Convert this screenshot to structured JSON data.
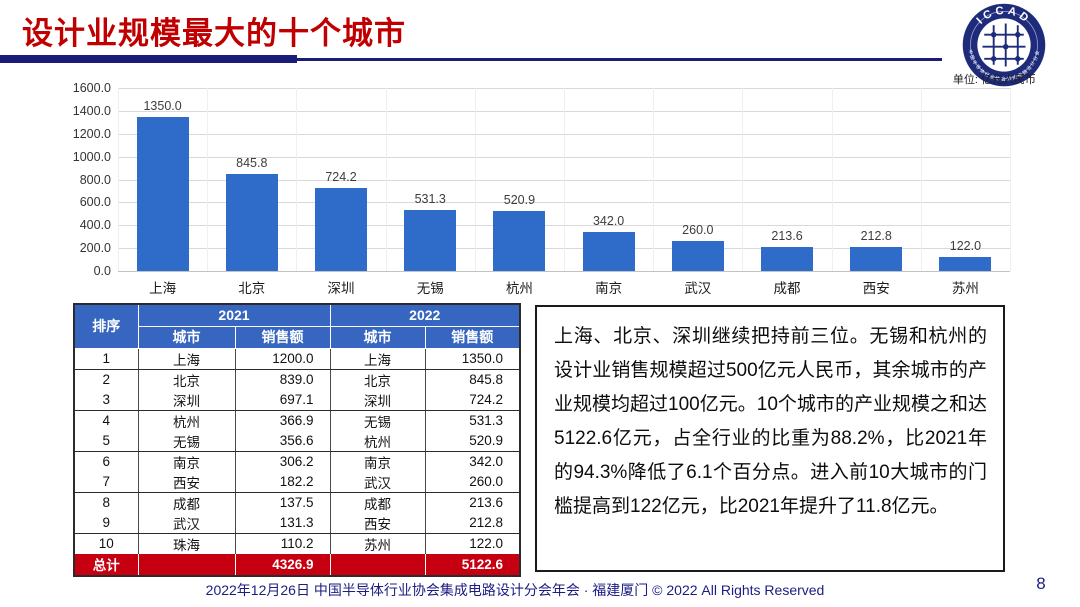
{
  "slide": {
    "title": "设计业规模最大的十个城市",
    "unit_label": "单位: 亿元人民币",
    "footer": "2022年12月26日 中国半导体行业协会集成电路设计分会年会 · 福建厦门 © 2022 All Rights Reserved",
    "page_number": "8",
    "logo": {
      "acronym": "ICCAD",
      "ring_text": "中国半导体行业协会集成电路设计分会"
    }
  },
  "colors": {
    "title_red": "#c00000",
    "accent_navy": "#1b1b78",
    "bar_blue": "#2f6bc9",
    "table_header_blue": "#3766c0",
    "total_row_red": "#c70011",
    "footer_navy": "#1c1c82"
  },
  "chart_data": {
    "type": "bar",
    "title": "",
    "xlabel": "",
    "ylabel": "",
    "unit": "亿元人民币",
    "categories": [
      "上海",
      "北京",
      "深圳",
      "无锡",
      "杭州",
      "南京",
      "武汉",
      "成都",
      "西安",
      "苏州"
    ],
    "values": [
      1350.0,
      845.8,
      724.2,
      531.3,
      520.9,
      342.0,
      260.0,
      213.6,
      212.8,
      122.0
    ],
    "data_labels": [
      "1350.0",
      "845.8",
      "724.2",
      "531.3",
      "520.9",
      "342.0",
      "260.0",
      "213.6",
      "212.8",
      "122.0"
    ],
    "ylim": [
      0,
      1600
    ],
    "ytick_interval": 200,
    "ytick_labels": [
      "1600.0",
      "1400.0",
      "1200.0",
      "1000.0",
      "800.0",
      "600.0",
      "400.0",
      "200.0",
      "0.0"
    ],
    "grid": true,
    "legend": false,
    "bar_color": "#2f6bc9"
  },
  "table": {
    "header": {
      "rank": "排序",
      "year_2021": "2021",
      "year_2022": "2022",
      "city": "城市",
      "sales": "销售额"
    },
    "rows": [
      {
        "rank": "1",
        "city_2021": "上海",
        "sales_2021": "1200.0",
        "city_2022": "上海",
        "sales_2022": "1350.0"
      },
      {
        "rank": "2",
        "city_2021": "北京",
        "sales_2021": "839.0",
        "city_2022": "北京",
        "sales_2022": "845.8"
      },
      {
        "rank": "3",
        "city_2021": "深圳",
        "sales_2021": "697.1",
        "city_2022": "深圳",
        "sales_2022": "724.2"
      },
      {
        "rank": "4",
        "city_2021": "杭州",
        "sales_2021": "366.9",
        "city_2022": "无锡",
        "sales_2022": "531.3"
      },
      {
        "rank": "5",
        "city_2021": "无锡",
        "sales_2021": "356.6",
        "city_2022": "杭州",
        "sales_2022": "520.9"
      },
      {
        "rank": "6",
        "city_2021": "南京",
        "sales_2021": "306.2",
        "city_2022": "南京",
        "sales_2022": "342.0"
      },
      {
        "rank": "7",
        "city_2021": "西安",
        "sales_2021": "182.2",
        "city_2022": "武汉",
        "sales_2022": "260.0"
      },
      {
        "rank": "8",
        "city_2021": "成都",
        "sales_2021": "137.5",
        "city_2022": "成都",
        "sales_2022": "213.6"
      },
      {
        "rank": "9",
        "city_2021": "武汉",
        "sales_2021": "131.3",
        "city_2022": "西安",
        "sales_2022": "212.8"
      },
      {
        "rank": "10",
        "city_2021": "珠海",
        "sales_2021": "110.2",
        "city_2022": "苏州",
        "sales_2022": "122.0"
      }
    ],
    "total": {
      "label": "总计",
      "sales_2021": "4326.9",
      "sales_2022": "5122.6"
    }
  },
  "commentary": {
    "text": "上海、北京、深圳继续把持前三位。无锡和杭州的设计业销售规模超过500亿元人民币，其余城市的产业规模均超过100亿元。10个城市的产业规模之和达5122.6亿元，占全行业的比重为88.2%，比2021年的94.3%降低了6.1个百分点。进入前10大城市的门槛提高到122亿元，比2021年提升了11.8亿元。"
  }
}
